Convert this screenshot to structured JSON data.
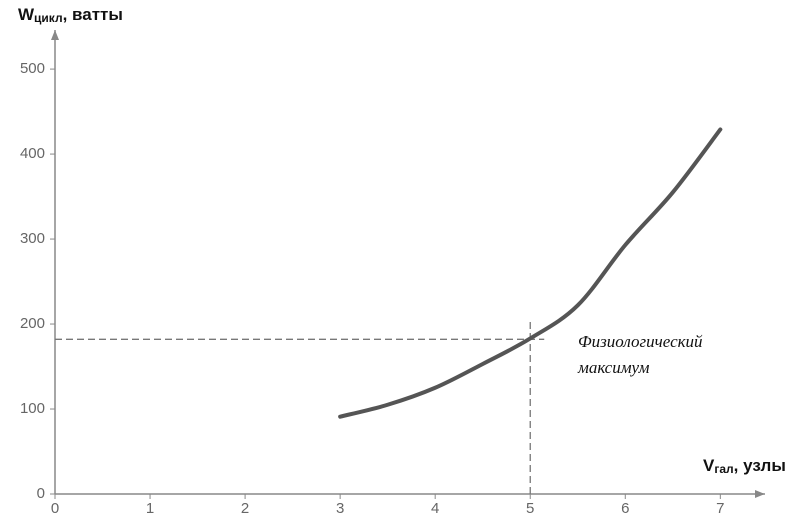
{
  "chart_data": {
    "type": "line",
    "y_label": [
      "W",
      "цикл",
      ", ватты"
    ],
    "x_label": [
      "V",
      "гал",
      ", узлы"
    ],
    "x": [
      3,
      3.5,
      4,
      4.5,
      5,
      5.5,
      6,
      6.5,
      7
    ],
    "series": [
      {
        "color": "#555555",
        "values": [
          91,
          105,
          125,
          153,
          183,
          222,
          293,
          355,
          429
        ]
      }
    ],
    "xlim": [
      0,
      7.47
    ],
    "ylim": [
      0,
      546
    ],
    "xticks": [
      0,
      1,
      2,
      3,
      4,
      5,
      6,
      7
    ],
    "yticks": [
      0,
      100,
      200,
      300,
      400,
      500
    ],
    "reference": {
      "x": 5,
      "y": 182
    },
    "annotation": [
      "Физиологический",
      "максимум"
    ],
    "grid": false
  }
}
